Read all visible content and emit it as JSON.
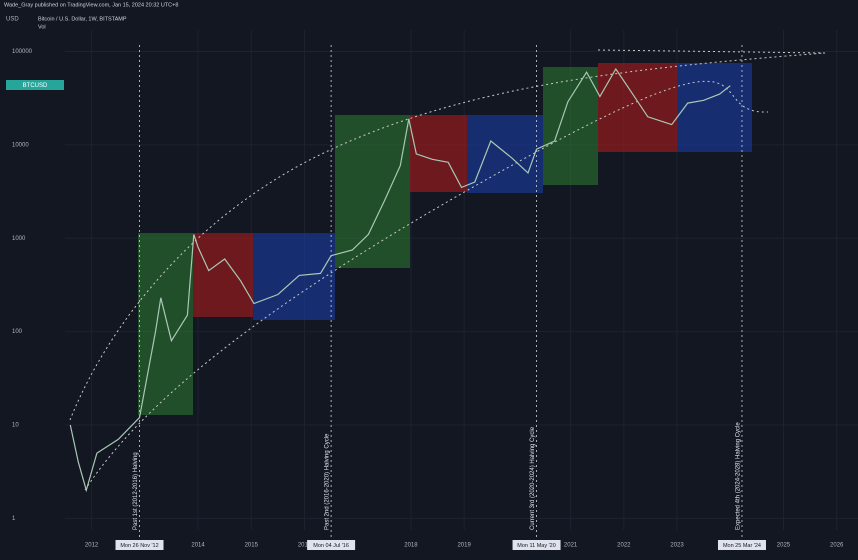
{
  "chart_data": {
    "type": "line",
    "header": "Wade_Gray published on TradingView.com, Jan 15, 2024 20:32 UTC+8",
    "symbol": "Bitcoin / U.S. Dollar, 1W, BITSTAMP",
    "volume_label": "Vol",
    "currency": "USD",
    "price_tag": "BTCUSD",
    "log_scale": true,
    "grid": true,
    "xlim": [
      2011.5,
      2026.4
    ],
    "xticks": [
      2012,
      2014,
      2015,
      2016,
      2018,
      2019,
      2021,
      2022,
      2023,
      2025,
      2026
    ],
    "ylim": [
      0.75,
      170000
    ],
    "yticks": [
      1,
      10,
      100,
      1000,
      10000,
      100000
    ],
    "x": [
      2011.6,
      2011.75,
      2011.9,
      2012.1,
      2012.5,
      2012.9,
      2013.2,
      2013.3,
      2013.5,
      2013.8,
      2013.92,
      2014.0,
      2014.2,
      2014.5,
      2014.8,
      2015.05,
      2015.5,
      2015.9,
      2016.3,
      2016.5,
      2016.9,
      2017.2,
      2017.5,
      2017.8,
      2017.96,
      2018.1,
      2018.4,
      2018.7,
      2018.95,
      2019.2,
      2019.5,
      2019.9,
      2020.2,
      2020.36,
      2020.7,
      2020.95,
      2021.3,
      2021.55,
      2021.85,
      2022.1,
      2022.45,
      2022.9,
      2023.2,
      2023.5,
      2023.8,
      2024.0
    ],
    "series": [
      {
        "name": "BTCUSD",
        "color": "#a9c8b4",
        "values": [
          10,
          4,
          2,
          5,
          7,
          12,
          100,
          230,
          80,
          150,
          1100,
          800,
          450,
          600,
          350,
          200,
          250,
          400,
          420,
          650,
          750,
          1100,
          2500,
          6000,
          19000,
          8000,
          7000,
          6500,
          3500,
          4000,
          11000,
          7200,
          5000,
          9000,
          11000,
          29000,
          60000,
          33000,
          65000,
          40000,
          20000,
          16500,
          28000,
          30000,
          35000,
          43000
        ]
      }
    ],
    "halvings": [
      {
        "x": 2012.9,
        "date": "Mon 26 Nov '12",
        "label": "Past 1st (2012-2016) Halving"
      },
      {
        "x": 2016.5,
        "date": "Mon 04 Jul '16",
        "label": "Past 2nd (2016-2020) Halving Cycle"
      },
      {
        "x": 2020.36,
        "date": "Mon 11 May '20",
        "label": "Current 3rd (2020-2024) Halving Cycle"
      },
      {
        "x": 2024.22,
        "date": "Mon 25 Mar '24",
        "label": "Expected 4th (2024-2028) Halving Cycle"
      }
    ]
  }
}
